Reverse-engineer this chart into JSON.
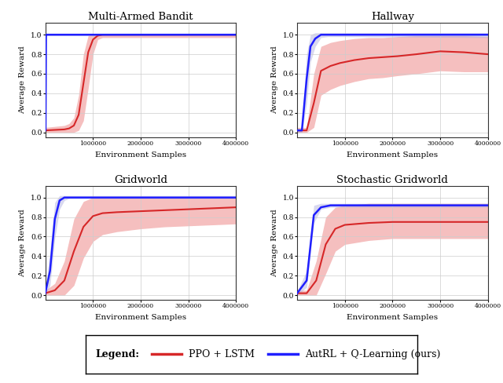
{
  "titles": [
    "Multi-Armed Bandit",
    "Hallway",
    "Gridworld",
    "Stochastic Gridworld"
  ],
  "xlabel": "Environment Samples",
  "ylabel": "Average Reward",
  "xlim": [
    0,
    4000000
  ],
  "yticks": [
    0.0,
    0.2,
    0.4,
    0.6,
    0.8,
    1.0
  ],
  "xticks": [
    1000000,
    2000000,
    3000000,
    4000000
  ],
  "ppo_color": "#d62728",
  "autrl_color": "#1f1fff",
  "ppo_fill_color": "#f4b8b8",
  "autrl_fill_color": "#aaaadd",
  "legend_ppo": "PPO + LSTM",
  "legend_autrl": "AutRL + Q-Learning (ours)",
  "background_color": "#ffffff",
  "grid_color": "#cccccc",
  "bandit": {
    "ppo_x": [
      0,
      400000,
      500000,
      600000,
      700000,
      800000,
      900000,
      1000000,
      1100000,
      1200000,
      4000000
    ],
    "ppo_y": [
      0.02,
      0.03,
      0.04,
      0.07,
      0.18,
      0.5,
      0.82,
      0.95,
      0.99,
      1.0,
      1.0
    ],
    "ppo_lo": [
      0.0,
      0.0,
      0.0,
      0.0,
      0.02,
      0.12,
      0.45,
      0.8,
      0.95,
      0.97,
      0.97
    ],
    "ppo_hi": [
      0.05,
      0.07,
      0.09,
      0.15,
      0.38,
      0.8,
      0.99,
      1.0,
      1.0,
      1.0,
      1.0
    ],
    "autrl_x": [
      0,
      5000,
      15000,
      30000,
      50000,
      4000000
    ],
    "autrl_y": [
      0.02,
      0.02,
      1.0,
      1.0,
      1.0,
      1.0
    ],
    "autrl_lo": [
      0.0,
      0.0,
      0.98,
      0.99,
      0.99,
      0.99
    ],
    "autrl_hi": [
      0.04,
      0.04,
      1.0,
      1.0,
      1.0,
      1.0
    ]
  },
  "hallway": {
    "ppo_x": [
      0,
      200000,
      350000,
      500000,
      700000,
      900000,
      1200000,
      1500000,
      1800000,
      2100000,
      2500000,
      3000000,
      3500000,
      4000000
    ],
    "ppo_y": [
      0.02,
      0.02,
      0.3,
      0.63,
      0.68,
      0.71,
      0.74,
      0.76,
      0.77,
      0.78,
      0.8,
      0.83,
      0.82,
      0.8
    ],
    "ppo_lo": [
      0.0,
      0.0,
      0.05,
      0.38,
      0.44,
      0.48,
      0.52,
      0.55,
      0.56,
      0.58,
      0.6,
      0.63,
      0.62,
      0.62
    ],
    "ppo_hi": [
      0.05,
      0.05,
      0.6,
      0.88,
      0.92,
      0.94,
      0.96,
      0.97,
      0.97,
      0.98,
      0.99,
      0.99,
      0.99,
      0.98
    ],
    "autrl_x": [
      0,
      100000,
      200000,
      280000,
      380000,
      500000,
      650000,
      800000,
      1000000,
      4000000
    ],
    "autrl_y": [
      0.02,
      0.02,
      0.55,
      0.88,
      0.96,
      1.0,
      1.0,
      1.0,
      1.0,
      1.0
    ],
    "autrl_lo": [
      0.0,
      0.0,
      0.3,
      0.72,
      0.88,
      0.97,
      0.98,
      0.98,
      0.98,
      0.97
    ],
    "autrl_hi": [
      0.04,
      0.04,
      0.8,
      1.0,
      1.02,
      1.02,
      1.02,
      1.02,
      1.02,
      1.02
    ]
  },
  "gridworld": {
    "ppo_x": [
      0,
      200000,
      400000,
      600000,
      800000,
      1000000,
      1200000,
      1500000,
      2000000,
      2500000,
      3000000,
      3500000,
      4000000
    ],
    "ppo_y": [
      0.02,
      0.05,
      0.15,
      0.45,
      0.7,
      0.81,
      0.84,
      0.85,
      0.86,
      0.87,
      0.88,
      0.89,
      0.9
    ],
    "ppo_lo": [
      0.0,
      0.0,
      0.0,
      0.1,
      0.38,
      0.55,
      0.62,
      0.65,
      0.68,
      0.7,
      0.71,
      0.72,
      0.73
    ],
    "ppo_hi": [
      0.05,
      0.12,
      0.35,
      0.78,
      0.96,
      1.0,
      1.0,
      1.0,
      1.0,
      1.0,
      1.0,
      1.0,
      1.0
    ],
    "autrl_x": [
      0,
      100000,
      200000,
      300000,
      400000,
      500000,
      650000,
      4000000
    ],
    "autrl_y": [
      0.02,
      0.25,
      0.78,
      0.97,
      1.0,
      1.0,
      1.0,
      1.0
    ],
    "autrl_lo": [
      0.0,
      0.1,
      0.58,
      0.88,
      0.97,
      0.99,
      0.99,
      0.99
    ],
    "autrl_hi": [
      0.04,
      0.45,
      0.95,
      1.02,
      1.02,
      1.02,
      1.02,
      1.02
    ]
  },
  "stochastic": {
    "ppo_x": [
      0,
      200000,
      400000,
      600000,
      800000,
      1000000,
      1500000,
      2000000,
      2500000,
      3000000,
      3500000,
      4000000
    ],
    "ppo_y": [
      0.02,
      0.02,
      0.15,
      0.52,
      0.68,
      0.72,
      0.74,
      0.75,
      0.75,
      0.75,
      0.75,
      0.75
    ],
    "ppo_lo": [
      0.0,
      0.0,
      0.0,
      0.22,
      0.45,
      0.52,
      0.56,
      0.58,
      0.58,
      0.58,
      0.58,
      0.58
    ],
    "ppo_hi": [
      0.05,
      0.05,
      0.35,
      0.8,
      0.9,
      0.92,
      0.94,
      0.94,
      0.94,
      0.94,
      0.94,
      0.94
    ],
    "autrl_x": [
      0,
      200000,
      350000,
      500000,
      700000,
      1000000,
      4000000
    ],
    "autrl_y": [
      0.02,
      0.15,
      0.82,
      0.9,
      0.92,
      0.92,
      0.92
    ],
    "autrl_lo": [
      0.0,
      0.08,
      0.74,
      0.88,
      0.9,
      0.9,
      0.9
    ],
    "autrl_hi": [
      0.04,
      0.25,
      0.92,
      0.94,
      0.94,
      0.94,
      0.94
    ]
  }
}
